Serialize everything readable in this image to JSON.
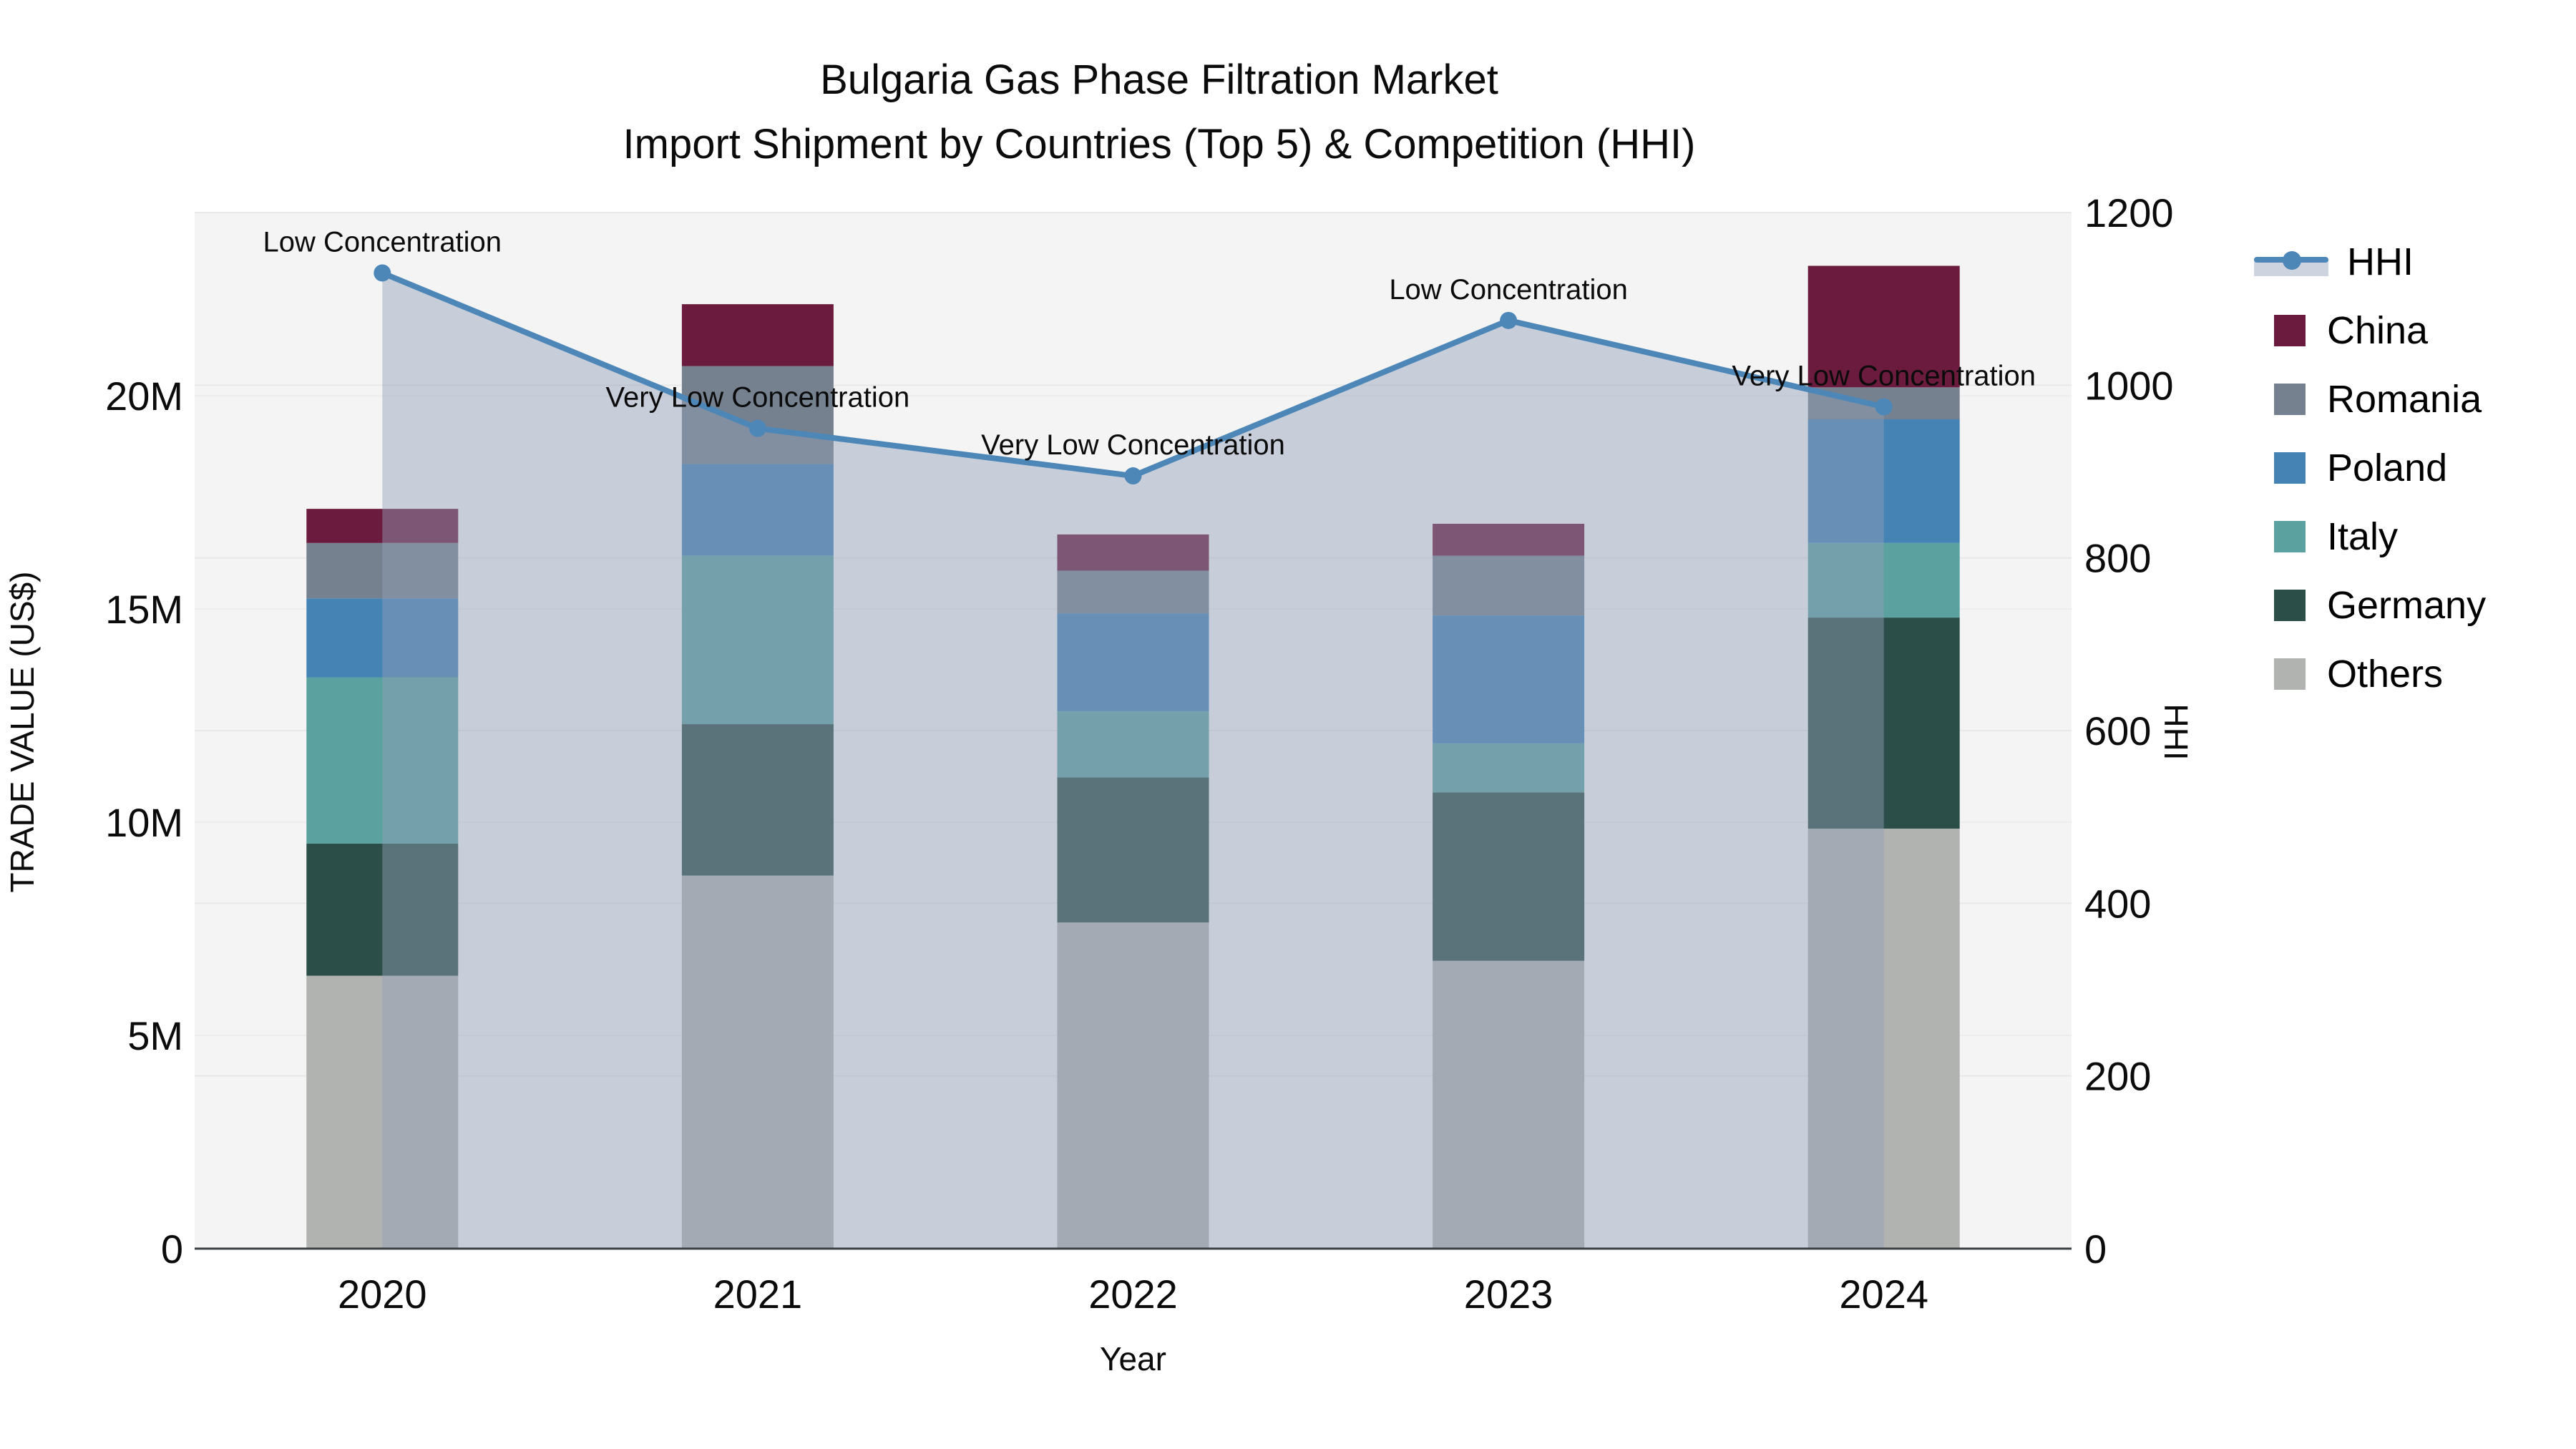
{
  "title": {
    "line1": "Bulgaria Gas Phase Filtration Market",
    "line2": "Import Shipment by Countries (Top 5) & Competition (HHI)"
  },
  "chart_data": {
    "type": "bar",
    "subtype": "stacked-bars-with-line-overlay",
    "categories": [
      "2020",
      "2021",
      "2022",
      "2023",
      "2024"
    ],
    "xlabel": "Year",
    "values_unit": "US$ millions",
    "left_axis": {
      "title": "TRADE VALUE (US$)",
      "tick_labels": [
        "0",
        "5M",
        "10M",
        "15M",
        "20M"
      ],
      "tick_values": [
        0,
        5,
        10,
        15,
        20
      ],
      "range": [
        0,
        24.3
      ]
    },
    "right_axis": {
      "title": "HHI",
      "tick_labels": [
        "0",
        "200",
        "400",
        "600",
        "800",
        "1000",
        "1200"
      ],
      "tick_values": [
        0,
        200,
        400,
        600,
        800,
        1000,
        1200
      ],
      "range": [
        0,
        1200
      ]
    },
    "series": [
      {
        "name": "Others",
        "color": "#B1B3B0",
        "values": [
          6.4,
          8.75,
          7.65,
          6.75,
          9.85
        ]
      },
      {
        "name": "Germany",
        "color": "#2C4E48",
        "values": [
          3.1,
          3.55,
          3.4,
          3.95,
          4.95
        ]
      },
      {
        "name": "Italy",
        "color": "#5AA19F",
        "values": [
          3.9,
          3.95,
          1.55,
          1.15,
          1.75
        ]
      },
      {
        "name": "Poland",
        "color": "#4583B5",
        "values": [
          1.85,
          2.15,
          2.3,
          3.0,
          2.9
        ]
      },
      {
        "name": "Romania",
        "color": "#76818F",
        "values": [
          1.3,
          2.3,
          1.0,
          1.4,
          0.75
        ]
      },
      {
        "name": "China",
        "color": "#6B1B3D",
        "values": [
          0.8,
          1.45,
          0.85,
          0.75,
          2.85
        ]
      }
    ],
    "hhi_line": {
      "name": "HHI",
      "color": "#4D87B8",
      "area_color": "rgba(146,160,184,0.45)",
      "values": [
        1130,
        950,
        895,
        1075,
        975
      ],
      "annotations": [
        "Low Concentration",
        "Very Low Concentration",
        "Very Low Concentration",
        "Low Concentration",
        "Very Low Concentration"
      ]
    },
    "grid": "on",
    "legend_position": "right"
  },
  "legend": {
    "items": [
      {
        "label": "HHI",
        "type": "line",
        "color": "#4D87B8"
      },
      {
        "label": "China",
        "type": "swatch",
        "color": "#6B1B3D"
      },
      {
        "label": "Romania",
        "type": "swatch",
        "color": "#76818F"
      },
      {
        "label": "Poland",
        "type": "swatch",
        "color": "#4583B5"
      },
      {
        "label": "Italy",
        "type": "swatch",
        "color": "#5AA19F"
      },
      {
        "label": "Germany",
        "type": "swatch",
        "color": "#2C4E48"
      },
      {
        "label": "Others",
        "type": "swatch",
        "color": "#B1B3B0"
      }
    ]
  },
  "plot_style": {
    "plot_bg": "#F4F4F4",
    "gridline_color": "#E8E8E8",
    "axis_line_color": "#3A3F44",
    "text_color": "#0B0B0B"
  }
}
